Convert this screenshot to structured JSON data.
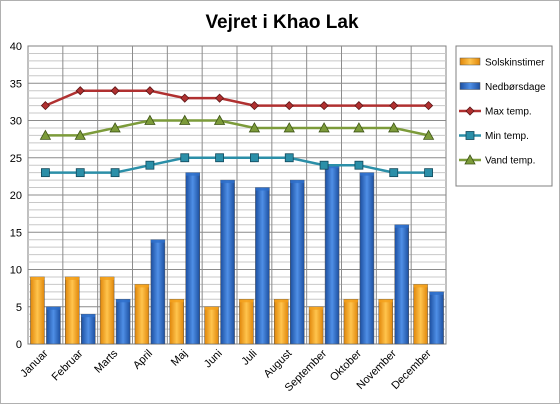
{
  "chart_data": {
    "type": "bar",
    "title": "Vejret i Khao Lak",
    "xlabel": "",
    "ylabel": "",
    "ylim": [
      0,
      40
    ],
    "yticks": [
      0,
      5,
      10,
      15,
      20,
      25,
      30,
      35,
      40
    ],
    "grid": true,
    "legend_position": "right",
    "categories": [
      "Januar",
      "Februar",
      "Marts",
      "April",
      "Maj",
      "Juni",
      "Juli",
      "August",
      "September",
      "Oktober",
      "November",
      "December"
    ],
    "series": [
      {
        "name": "Solskinstimer",
        "kind": "bar",
        "color": "#F5A11C",
        "values": [
          9,
          9,
          9,
          8,
          6,
          5,
          6,
          6,
          5,
          6,
          6,
          8
        ]
      },
      {
        "name": "Nedbørsdage",
        "kind": "bar",
        "color": "#2E6FCB",
        "values": [
          5,
          4,
          6,
          14,
          23,
          22,
          21,
          22,
          24,
          23,
          16,
          7
        ]
      },
      {
        "name": "Max temp.",
        "kind": "line",
        "marker": "diamond",
        "color": "#B03030",
        "values": [
          32,
          34,
          34,
          34,
          33,
          33,
          32,
          32,
          32,
          32,
          32,
          32
        ]
      },
      {
        "name": "Min temp.",
        "kind": "line",
        "marker": "square",
        "color": "#2B8FA8",
        "values": [
          23,
          23,
          23,
          24,
          25,
          25,
          25,
          25,
          24,
          24,
          23,
          23
        ]
      },
      {
        "name": "Vand temp.",
        "kind": "line",
        "marker": "triangle",
        "color": "#7C9B3A",
        "values": [
          28,
          28,
          29,
          30,
          30,
          30,
          29,
          29,
          29,
          29,
          29,
          28
        ]
      }
    ]
  }
}
